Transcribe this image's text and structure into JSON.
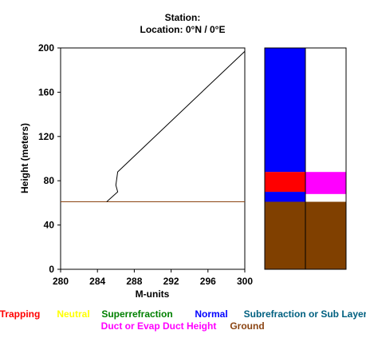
{
  "header": {
    "station": "Station:",
    "location": "Location:   0°N /   0°E"
  },
  "chart_data": {
    "type": "line",
    "xlabel": "M-units",
    "ylabel": "Height (meters)",
    "xlim": [
      280,
      300
    ],
    "ylim": [
      0,
      200
    ],
    "x_ticks": [
      "280",
      "284",
      "288",
      "292",
      "296",
      "300"
    ],
    "y_ticks": [
      "0",
      "40",
      "80",
      "120",
      "160",
      "200"
    ],
    "series": [
      {
        "x": [
          285.0,
          286.2,
          286.0,
          286.2,
          300.0
        ],
        "y": [
          61,
          70,
          76,
          88,
          197
        ],
        "color": "#000000"
      }
    ],
    "ground_height": 61,
    "ground_line_color": "#8B4513",
    "bars": [
      {
        "segments": [
          {
            "from": 0,
            "to": 61,
            "color": "#804000"
          },
          {
            "from": 61,
            "to": 70,
            "color": "#0000FF"
          },
          {
            "from": 70,
            "to": 88,
            "color": "#FF0000"
          },
          {
            "from": 88,
            "to": 200,
            "color": "#0000FF"
          }
        ]
      },
      {
        "segments": [
          {
            "from": 0,
            "to": 61,
            "color": "#804000"
          },
          {
            "from": 61,
            "to": 68,
            "color": "#FFFFFF"
          },
          {
            "from": 68,
            "to": 88,
            "color": "#FF00FF"
          },
          {
            "from": 88,
            "to": 200,
            "color": "#FFFFFF"
          }
        ]
      }
    ],
    "legend": {
      "row1": [
        {
          "label": "Trapping",
          "color": "#FF0000"
        },
        {
          "label": "Neutral",
          "color": "#FFFF00"
        },
        {
          "label": "Superrefraction",
          "color": "#008000"
        },
        {
          "label": "Normal",
          "color": "#0000FF"
        },
        {
          "label": "Subrefraction or Sub Layer",
          "color": "#006080"
        }
      ],
      "row2": [
        {
          "label": "Duct or Evap Duct Height",
          "color": "#FF00FF"
        },
        {
          "label": "Ground",
          "color": "#8B4513"
        }
      ]
    }
  }
}
